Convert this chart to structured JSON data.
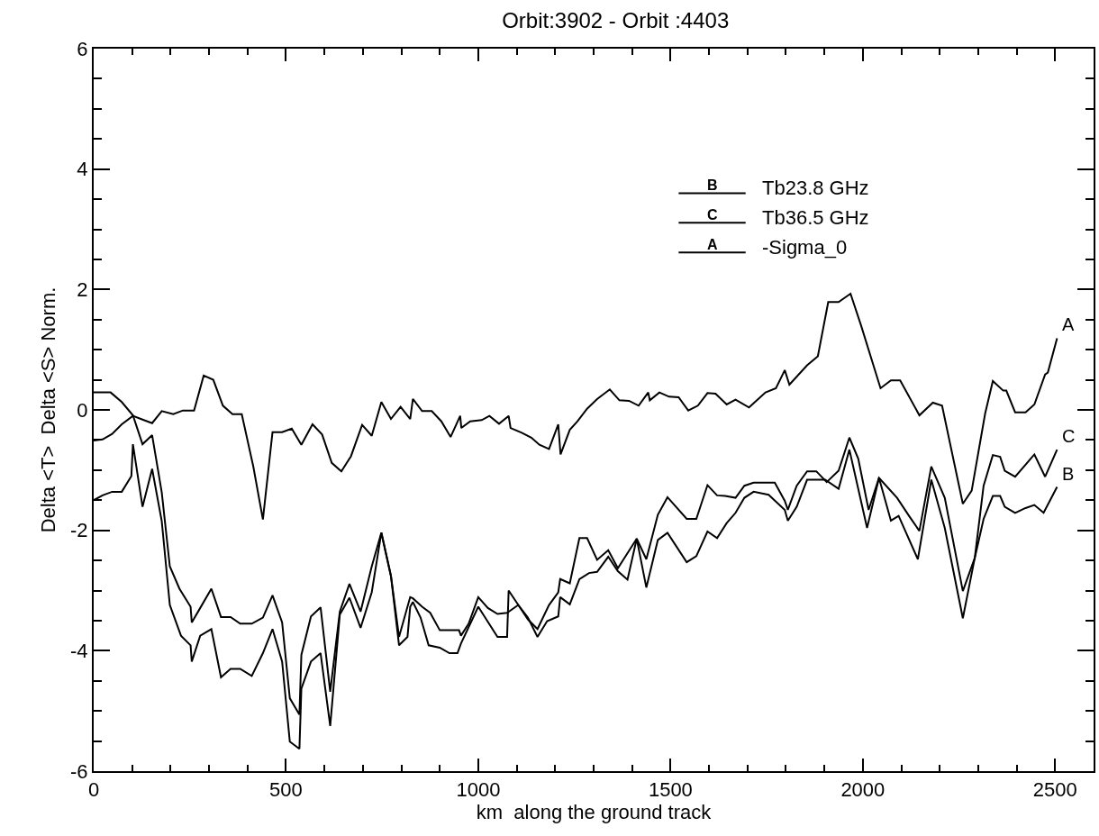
{
  "chart_data": {
    "type": "line",
    "title": "Orbit:3902 - Orbit :4403",
    "xlabel": "km  along the ground track",
    "ylabel": "Delta <T>  Delta <S> Norm.",
    "xlim": [
      0,
      2600
    ],
    "xticks": [
      0,
      500,
      1000,
      1500,
      2000,
      2500
    ],
    "ylim": [
      -6,
      6
    ],
    "yticks": [
      -6,
      -4,
      -2,
      0,
      2,
      4,
      6
    ],
    "grid": false,
    "legend": "top right",
    "marker": "none",
    "line_style": "solid",
    "series": [
      {
        "name": "Tb23.8 GHz",
        "color": "#000000",
        "x": [
          0,
          23,
          48,
          73,
          98,
          102,
          127,
          152,
          177,
          198,
          227,
          252,
          255,
          277,
          306,
          331,
          356,
          381,
          411,
          440,
          465,
          490,
          510,
          535,
          540,
          565,
          590,
          615,
          640,
          665,
          694,
          723,
          748,
          773,
          794,
          816,
          823,
          830,
          850,
          871,
          900,
          925,
          946,
          955,
          1000,
          1050,
          1075,
          1079,
          1104,
          1129,
          1154,
          1179,
          1208,
          1213,
          1238,
          1263,
          1288,
          1309,
          1338,
          1363,
          1388,
          1412,
          1437,
          1467,
          1492,
          1542,
          1567,
          1596,
          1621,
          1646,
          1669,
          1692,
          1716,
          1755,
          1797,
          1805,
          1828,
          1855,
          1902,
          1937,
          1965,
          2011,
          2042,
          2073,
          2093,
          2143,
          2178,
          2213,
          2260,
          2291,
          2314,
          2338,
          2357,
          2369,
          2396,
          2423,
          2446,
          2470,
          2505
        ],
        "values": [
          -1.5,
          -1.42,
          -1.36,
          -1.36,
          -1.1,
          -0.57,
          -1.61,
          -0.98,
          -1.85,
          -3.24,
          -3.75,
          -3.91,
          -4.18,
          -3.75,
          -3.64,
          -4.44,
          -4.3,
          -4.3,
          -4.42,
          -4.04,
          -3.64,
          -4.18,
          -5.51,
          -5.63,
          -4.63,
          -4.18,
          -4.04,
          -5.25,
          -3.4,
          -3.12,
          -3.62,
          -3.03,
          -2.04,
          -2.76,
          -3.91,
          -3.77,
          -3.27,
          -3.19,
          -3.45,
          -3.91,
          -3.95,
          -4.04,
          -4.04,
          -3.88,
          -3.27,
          -3.77,
          -3.77,
          -3.0,
          -3.24,
          -3.45,
          -3.77,
          -3.51,
          -3.43,
          -3.11,
          -3.23,
          -2.81,
          -2.71,
          -2.69,
          -2.44,
          -2.68,
          -2.82,
          -2.14,
          -2.95,
          -2.16,
          -2.04,
          -2.53,
          -2.43,
          -2.02,
          -2.13,
          -1.88,
          -1.71,
          -1.46,
          -1.36,
          -1.41,
          -1.66,
          -1.84,
          -1.61,
          -1.16,
          -1.16,
          -1.31,
          -0.66,
          -1.96,
          -1.13,
          -1.84,
          -1.76,
          -2.48,
          -1.16,
          -1.96,
          -3.46,
          -2.46,
          -1.81,
          -1.43,
          -1.43,
          -1.61,
          -1.71,
          -1.63,
          -1.58,
          -1.71,
          -1.28
        ]
      },
      {
        "name": "Tb36.5 GHz",
        "color": "#000000",
        "x": [
          0,
          44,
          73,
          102,
          127,
          152,
          177,
          198,
          223,
          252,
          255,
          277,
          306,
          331,
          356,
          381,
          411,
          440,
          465,
          490,
          510,
          535,
          540,
          565,
          590,
          615,
          640,
          665,
          694,
          723,
          748,
          773,
          794,
          823,
          830,
          854,
          875,
          900,
          950,
          955,
          975,
          1000,
          1025,
          1050,
          1075,
          1104,
          1129,
          1154,
          1184,
          1208,
          1213,
          1238,
          1263,
          1283,
          1309,
          1338,
          1363,
          1412,
          1437,
          1467,
          1492,
          1542,
          1567,
          1596,
          1621,
          1642,
          1669,
          1692,
          1716,
          1771,
          1797,
          1805,
          1828,
          1855,
          1879,
          1906,
          1937,
          1965,
          1988,
          2015,
          2042,
          2089,
          2120,
          2147,
          2178,
          2213,
          2260,
          2291,
          2314,
          2338,
          2357,
          2369,
          2396,
          2423,
          2446,
          2474,
          2505
        ],
        "values": [
          0.29,
          0.29,
          0.13,
          -0.09,
          -0.57,
          -0.42,
          -1.37,
          -2.6,
          -2.97,
          -3.27,
          -3.53,
          -3.29,
          -2.97,
          -3.44,
          -3.44,
          -3.55,
          -3.55,
          -3.45,
          -3.08,
          -3.53,
          -4.79,
          -5.06,
          -4.07,
          -3.43,
          -3.28,
          -4.68,
          -3.35,
          -2.89,
          -3.35,
          -2.6,
          -2.04,
          -2.76,
          -3.77,
          -3.11,
          -3.13,
          -3.27,
          -3.37,
          -3.66,
          -3.66,
          -3.75,
          -3.55,
          -3.11,
          -3.29,
          -3.39,
          -3.37,
          -3.24,
          -3.48,
          -3.64,
          -3.24,
          -3.03,
          -2.81,
          -2.88,
          -2.13,
          -2.13,
          -2.49,
          -2.33,
          -2.63,
          -2.14,
          -2.48,
          -1.74,
          -1.45,
          -1.81,
          -1.81,
          -1.25,
          -1.42,
          -1.43,
          -1.46,
          -1.26,
          -1.21,
          -1.21,
          -1.51,
          -1.66,
          -1.26,
          -1.02,
          -1.02,
          -1.2,
          -1.01,
          -0.46,
          -0.81,
          -1.66,
          -1.13,
          -1.46,
          -1.76,
          -2.01,
          -0.94,
          -1.46,
          -3.01,
          -2.46,
          -1.26,
          -0.75,
          -0.78,
          -1.01,
          -1.11,
          -0.91,
          -0.74,
          -1.11,
          -0.66
        ]
      },
      {
        "name": "-Sigma_0",
        "color": "#000000",
        "x": [
          0,
          23,
          48,
          73,
          102,
          127,
          152,
          177,
          207,
          232,
          261,
          286,
          311,
          336,
          361,
          385,
          415,
          440,
          465,
          490,
          515,
          540,
          569,
          594,
          619,
          644,
          669,
          698,
          723,
          748,
          773,
          798,
          823,
          830,
          854,
          879,
          904,
          928,
          953,
          956,
          979,
          1009,
          1029,
          1054,
          1079,
          1084,
          1113,
          1138,
          1159,
          1184,
          1208,
          1214,
          1238,
          1258,
          1283,
          1309,
          1342,
          1367,
          1392,
          1417,
          1442,
          1446,
          1471,
          1496,
          1521,
          1546,
          1571,
          1596,
          1617,
          1646,
          1669,
          1704,
          1747,
          1774,
          1797,
          1809,
          1855,
          1883,
          1910,
          1937,
          1968,
          1996,
          2046,
          2073,
          2097,
          2147,
          2182,
          2206,
          2260,
          2283,
          2318,
          2338,
          2365,
          2373,
          2396,
          2423,
          2446,
          2474,
          2481,
          2505
        ],
        "values": [
          -0.51,
          -0.49,
          -0.4,
          -0.24,
          -0.1,
          -0.16,
          -0.22,
          -0.02,
          -0.07,
          -0.01,
          -0.01,
          0.57,
          0.5,
          0.07,
          -0.07,
          -0.07,
          -0.94,
          -1.82,
          -0.37,
          -0.37,
          -0.31,
          -0.58,
          -0.24,
          -0.41,
          -0.88,
          -1.02,
          -0.77,
          -0.25,
          -0.43,
          0.13,
          -0.15,
          0.05,
          -0.15,
          0.18,
          -0.02,
          -0.02,
          -0.19,
          -0.45,
          -0.1,
          -0.3,
          -0.19,
          -0.17,
          -0.1,
          -0.23,
          -0.1,
          -0.3,
          -0.38,
          -0.46,
          -0.58,
          -0.65,
          -0.24,
          -0.74,
          -0.33,
          -0.19,
          0.02,
          0.18,
          0.34,
          0.16,
          0.15,
          0.07,
          0.29,
          0.16,
          0.29,
          0.22,
          0.21,
          -0.01,
          0.07,
          0.28,
          0.27,
          0.09,
          0.17,
          0.04,
          0.29,
          0.36,
          0.66,
          0.42,
          0.74,
          0.89,
          1.79,
          1.79,
          1.93,
          1.39,
          0.36,
          0.49,
          0.49,
          -0.09,
          0.12,
          0.07,
          -1.56,
          -1.34,
          -0.06,
          0.48,
          0.32,
          0.32,
          -0.04,
          -0.04,
          0.09,
          0.59,
          0.62,
          1.19
        ]
      }
    ],
    "annotations": [
      "B",
      "C",
      "A"
    ]
  }
}
